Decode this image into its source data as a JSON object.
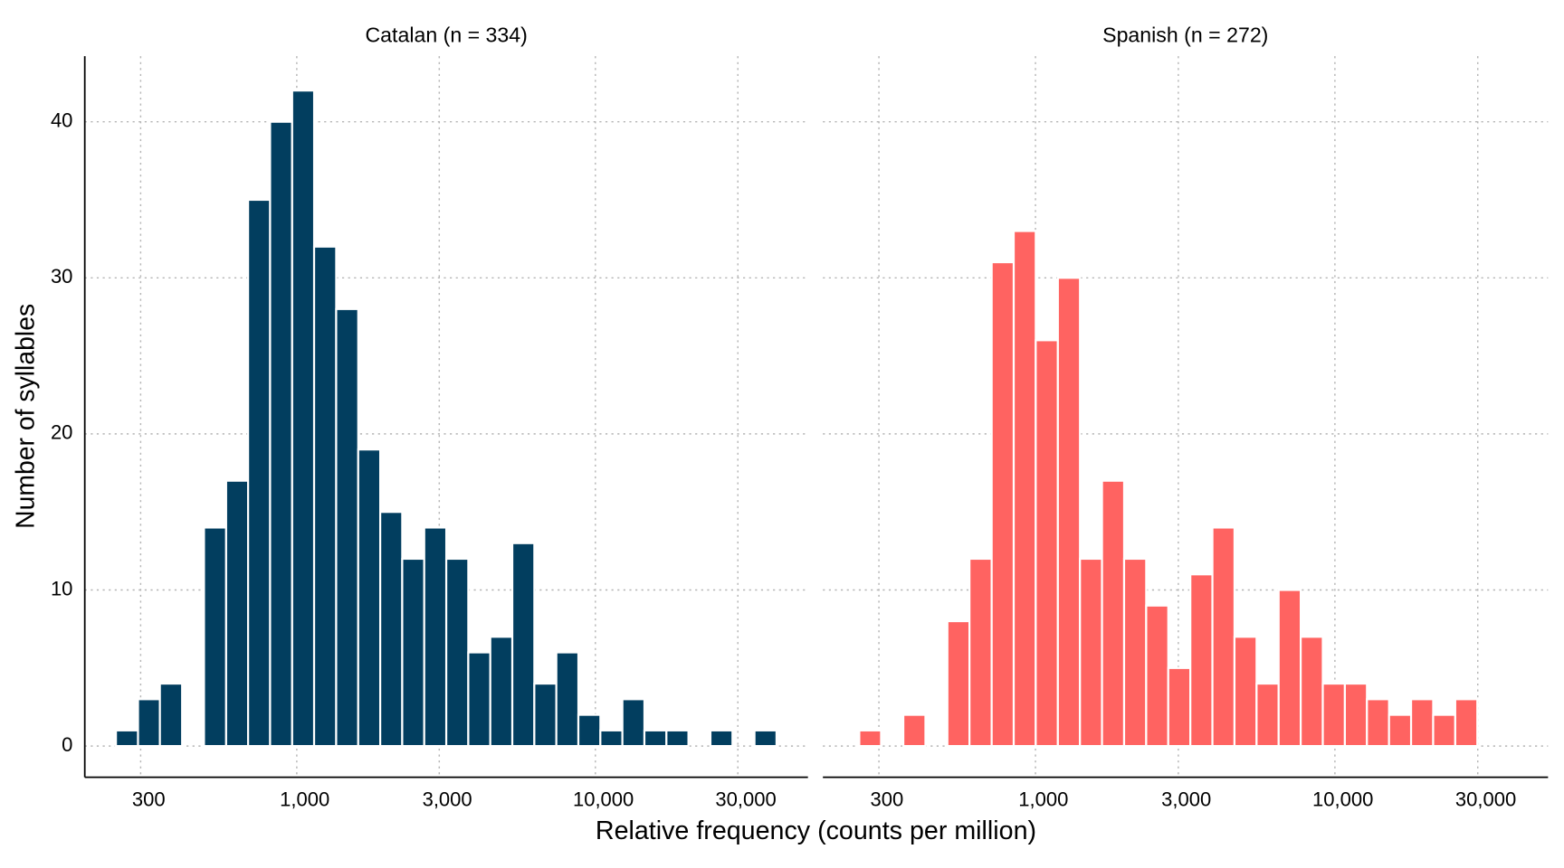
{
  "xlabel": "Relative frequency (counts per million)",
  "ylabel": "Number of syllables",
  "chart_data": [
    {
      "type": "histogram",
      "title": "Catalan (n = 334)",
      "color": "#023e5f",
      "bins": [
        248,
        294,
        348,
        413,
        489,
        580,
        687,
        814,
        965,
        1143,
        1355,
        1606,
        1903,
        2255,
        2672,
        3167,
        3753,
        4447,
        5270,
        6245,
        7400,
        8770,
        10392,
        12315,
        14594,
        17294,
        20494,
        24286,
        28780,
        34105,
        40416
      ],
      "values": [
        1,
        3,
        4,
        0,
        14,
        17,
        35,
        40,
        42,
        32,
        28,
        19,
        15,
        12,
        14,
        12,
        6,
        7,
        13,
        4,
        6,
        2,
        1,
        3,
        1,
        1,
        0,
        1,
        0,
        1
      ],
      "xlim": [
        195,
        51500
      ],
      "ylim": [
        -2,
        44.2
      ],
      "log_x": true,
      "grid": true,
      "xticks": [
        300,
        {
          "value": 1000,
          "label": "1,000"
        },
        {
          "value": 3000,
          "label": "3,000"
        },
        {
          "value": 10000,
          "label": "10,000"
        },
        {
          "value": 30000,
          "label": "30,000"
        }
      ],
      "yticks": [
        0,
        10,
        20,
        30,
        40
      ]
    },
    {
      "type": "histogram",
      "title": "Spanish (n = 272)",
      "color": "#ff6361",
      "bins": [
        258,
        305,
        362,
        429,
        508,
        602,
        714,
        846,
        1002,
        1188,
        1408,
        1668,
        1977,
        2343,
        2776,
        3290,
        3899,
        4620,
        5475,
        6488,
        7688,
        9111,
        10797,
        12794,
        15162,
        17967,
        21291,
        25230,
        29898
      ],
      "values": [
        1,
        0,
        2,
        0,
        8,
        12,
        31,
        33,
        26,
        30,
        12,
        17,
        12,
        9,
        5,
        11,
        14,
        7,
        4,
        10,
        7,
        4,
        4,
        3,
        2,
        3,
        2,
        3
      ],
      "xlim": [
        195,
        51500
      ],
      "ylim": [
        -2,
        44.2
      ],
      "log_x": true,
      "grid": true,
      "xticks": [
        300,
        {
          "value": 1000,
          "label": "1,000"
        },
        {
          "value": 3000,
          "label": "3,000"
        },
        {
          "value": 10000,
          "label": "10,000"
        },
        {
          "value": 30000,
          "label": "30,000"
        }
      ],
      "yticks": [
        0,
        10,
        20,
        30,
        40
      ]
    }
  ]
}
